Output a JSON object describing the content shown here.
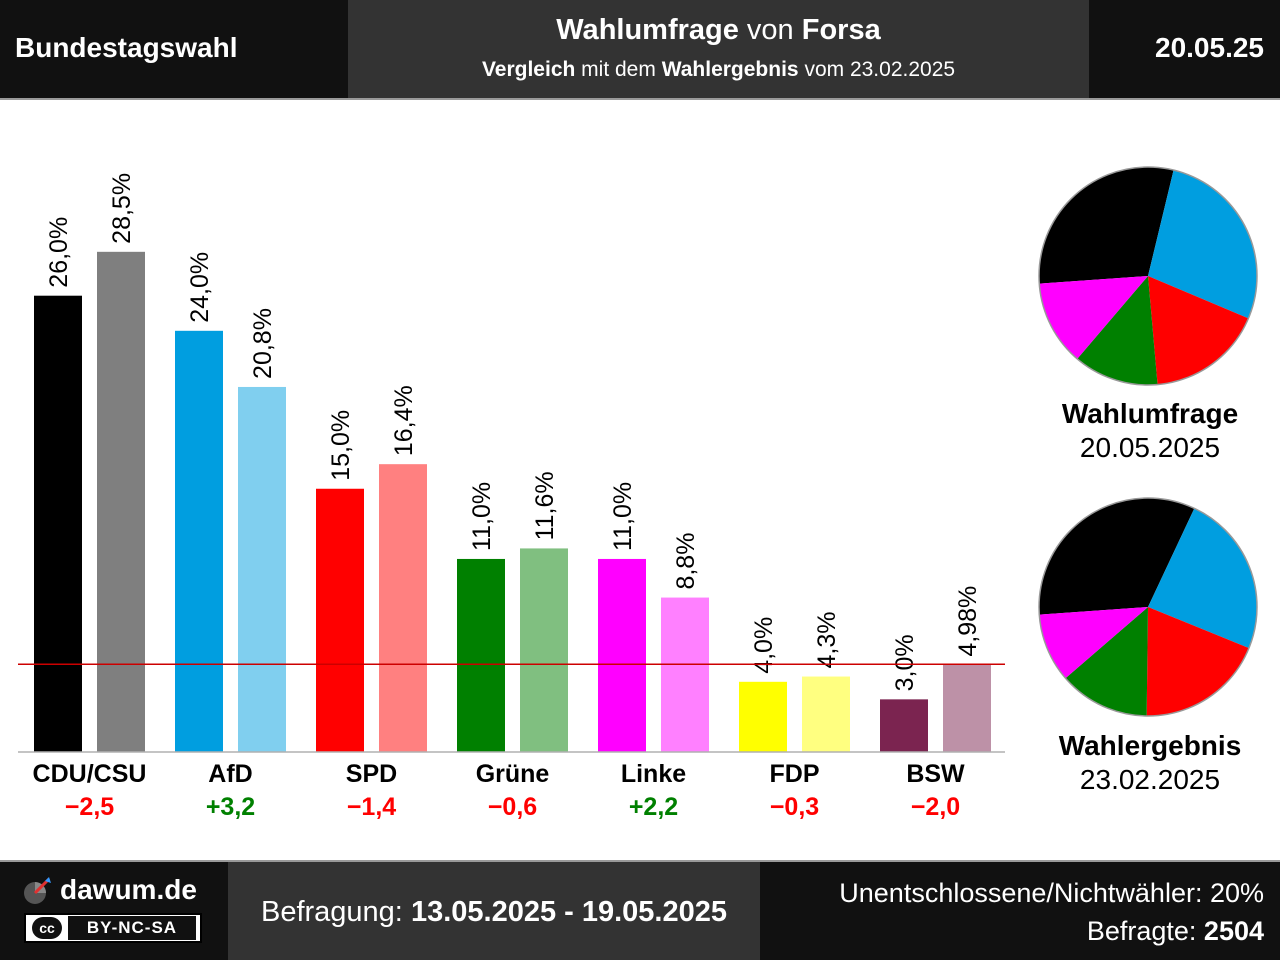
{
  "header": {
    "left_title": "Bundestagswahl",
    "title_bold_1": "Wahlumfrage",
    "title_mid": " von ",
    "title_bold_2": "Forsa",
    "sub_bold_1": "Vergleich",
    "sub_mid": " mit dem ",
    "sub_bold_2": "Wahlergebnis",
    "sub_end": " vom 23.02.2025",
    "date": "20.05.25"
  },
  "chart_data": {
    "type": "bar",
    "categories": [
      "CDU/CSU",
      "AfD",
      "SPD",
      "Grüne",
      "Linke",
      "FDP",
      "BSW"
    ],
    "series": [
      {
        "values": [
          26.0,
          24.0,
          15.0,
          11.0,
          11.0,
          4.0,
          3.0
        ],
        "labels": [
          "26,0%",
          "24,0%",
          "15,0%",
          "11,0%",
          "11,0%",
          "4,0%",
          "3,0%"
        ],
        "colors": [
          "#000000",
          "#009ee0",
          "#ff0000",
          "#008000",
          "#ff00ff",
          "#ffff00",
          "#7b2450"
        ]
      },
      {
        "values": [
          28.5,
          20.8,
          16.4,
          11.6,
          8.8,
          4.3,
          4.98
        ],
        "labels": [
          "28,5%",
          "20,8%",
          "16,4%",
          "11,6%",
          "8,8%",
          "4,3%",
          "4,98%"
        ],
        "colors": [
          "#7f7f7f",
          "#80cfef",
          "#ff8080",
          "#80bf80",
          "#ff80ff",
          "#ffff80",
          "#bd91a7"
        ]
      }
    ],
    "changes": [
      "−2,5",
      "+3,2",
      "−1,4",
      "−0,6",
      "+2,2",
      "−0,3",
      "−2,0"
    ],
    "change_colors": [
      "#ff0000",
      "#008000",
      "#ff0000",
      "#ff0000",
      "#008000",
      "#ff0000",
      "#ff0000"
    ],
    "threshold": 5,
    "threshold_color": "#cc0000",
    "ylim": [
      0,
      30
    ],
    "grid": false,
    "pies": [
      {
        "title": "Wahlumfrage",
        "date": "20.05.2025",
        "values": [
          26.0,
          24.0,
          15.0,
          11.0,
          11.0
        ],
        "colors": [
          "#000000",
          "#009ee0",
          "#ff0000",
          "#008000",
          "#ff00ff"
        ]
      },
      {
        "title": "Wahlergebnis",
        "date": "23.02.2025",
        "values": [
          28.5,
          20.8,
          16.4,
          11.6,
          8.8
        ],
        "colors": [
          "#000000",
          "#009ee0",
          "#ff0000",
          "#008000",
          "#ff00ff"
        ]
      }
    ]
  },
  "footer": {
    "brand": "dawum.de",
    "license_cc": "cc",
    "license": "BY-NC-SA",
    "period_label": "Befragung: ",
    "period": "13.05.2025 - 19.05.2025",
    "undecided": "Unentschlossene/Nichtwähler: 20%",
    "respondents_label": "Befragte: ",
    "respondents": "2504"
  }
}
